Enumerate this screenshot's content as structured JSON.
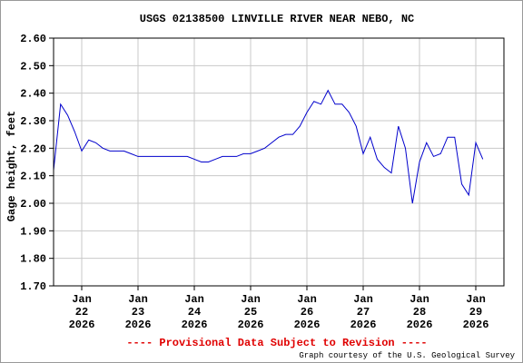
{
  "chart_data": {
    "type": "line",
    "title": "USGS 02138500 LINVILLE RIVER NEAR NEBO, NC",
    "ylabel": "Gage height, feet",
    "notice": "---- Provisional Data Subject to Revision ----",
    "credit": "Graph courtesy of the U.S. Geological Survey",
    "categories": [
      null,
      null,
      null,
      null,
      "Jan\n22\n2026",
      null,
      null,
      null,
      null,
      null,
      null,
      null,
      "Jan\n23\n2026",
      null,
      null,
      null,
      null,
      null,
      null,
      null,
      "Jan\n24\n2026",
      null,
      null,
      null,
      null,
      null,
      null,
      null,
      "Jan\n25\n2026",
      null,
      null,
      null,
      null,
      null,
      null,
      null,
      "Jan\n26\n2026",
      null,
      null,
      null,
      null,
      null,
      null,
      null,
      "Jan\n27\n2026",
      null,
      null,
      null,
      null,
      null,
      null,
      null,
      "Jan\n28\n2026",
      null,
      null,
      null,
      null,
      null,
      null,
      null,
      "Jan\n29\n2026",
      null,
      null,
      null,
      null
    ],
    "series": [
      {
        "name": "Gage height",
        "color": "#0000cc",
        "values": [
          2.12,
          2.36,
          2.32,
          2.26,
          2.19,
          2.23,
          2.22,
          2.2,
          2.19,
          2.19,
          2.19,
          2.18,
          2.17,
          2.17,
          2.17,
          2.17,
          2.17,
          2.17,
          2.17,
          2.17,
          2.16,
          2.15,
          2.15,
          2.16,
          2.17,
          2.17,
          2.17,
          2.18,
          2.18,
          2.19,
          2.2,
          2.22,
          2.24,
          2.25,
          2.25,
          2.28,
          2.33,
          2.37,
          2.36,
          2.41,
          2.36,
          2.36,
          2.33,
          2.28,
          2.18,
          2.24,
          2.16,
          2.13,
          2.11,
          2.28,
          2.2,
          2.0,
          2.15,
          2.22,
          2.17,
          2.18,
          2.24,
          2.24,
          2.07,
          2.03,
          2.22,
          2.16,
          null,
          null,
          null
        ]
      }
    ],
    "ylim": [
      1.7,
      2.6
    ],
    "yticks": [
      {
        "value": 1.7,
        "label": "1.70"
      },
      {
        "value": 1.8,
        "label": "1.80"
      },
      {
        "value": 1.9,
        "label": "1.90"
      },
      {
        "value": 2.0,
        "label": "2.00"
      },
      {
        "value": 2.1,
        "label": "2.10"
      },
      {
        "value": 2.2,
        "label": "2.20"
      },
      {
        "value": 2.3,
        "label": "2.30"
      },
      {
        "value": 2.4,
        "label": "2.40"
      },
      {
        "value": 2.5,
        "label": "2.50"
      },
      {
        "value": 2.6,
        "label": "2.60"
      }
    ],
    "grid": true
  }
}
